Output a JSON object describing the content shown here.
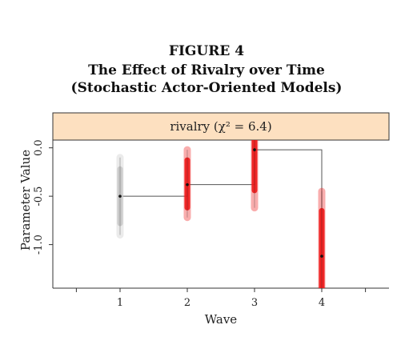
{
  "figure": {
    "label": "FIGURE 4",
    "title": "The Effect of Rivalry over Time (Stochastic Actor-Oriented Models)"
  },
  "chart_data": {
    "type": "scatter",
    "panel_label": "rivalry (χ² = 6.4)",
    "xlabel": "Wave",
    "ylabel": "Parameter Value",
    "x_ticks": [
      "1",
      "2",
      "3",
      "4"
    ],
    "y_ticks": [
      "0.0",
      "-0.5",
      "-1.0"
    ],
    "xlim": [
      0.0,
      5.0
    ],
    "ylim": [
      -1.45,
      0.08
    ],
    "colors": {
      "wave1": "#c8c8c8",
      "others": "#f01818",
      "strip_bg": "#fde0c0",
      "line": "#555555"
    },
    "series": [
      {
        "wave": 1,
        "estimate": -0.5,
        "ci_low": -0.9,
        "ci_high": -0.1,
        "color": "#c8c8c8"
      },
      {
        "wave": 2,
        "estimate": -0.38,
        "ci_low": -0.72,
        "ci_high": -0.02,
        "color": "#f01818"
      },
      {
        "wave": 3,
        "estimate": -0.02,
        "ci_low": -0.62,
        "ci_high": 0.15,
        "color": "#f01818"
      },
      {
        "wave": 4,
        "estimate": -1.12,
        "ci_low": -1.6,
        "ci_high": -0.45,
        "color": "#f01818"
      }
    ]
  }
}
